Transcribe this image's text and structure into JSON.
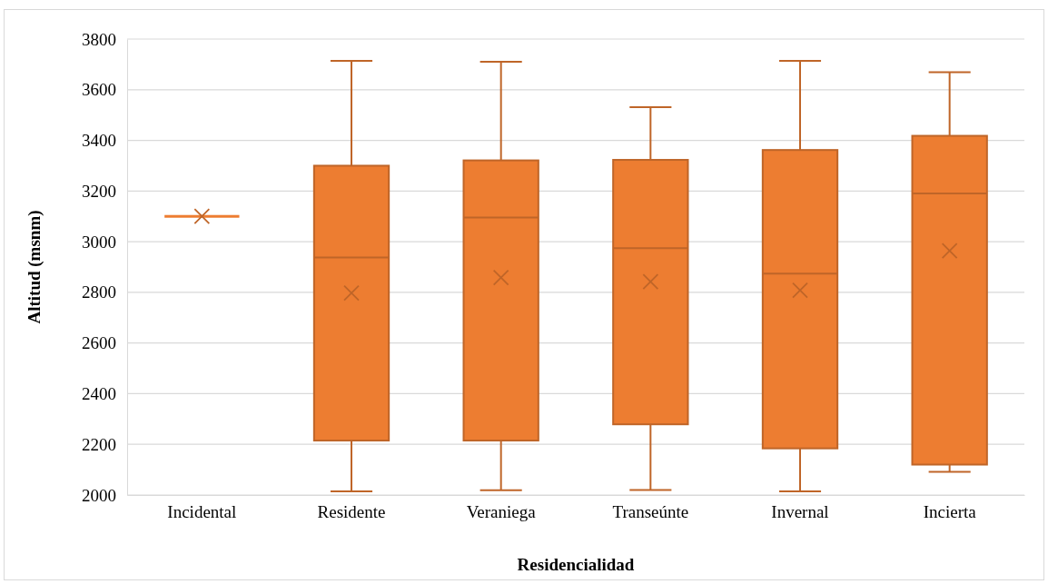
{
  "chart_data": {
    "type": "box",
    "xlabel": "Residencialidad",
    "ylabel": "Altitud (msnm)",
    "categories": [
      "Incidental",
      "Residente",
      "Veraniega",
      "Transeúnte",
      "Invernal",
      "Incierta"
    ],
    "boxes": [
      {
        "low": 3100,
        "q1": 3100,
        "median": 3100,
        "q3": 3100,
        "high": 3100,
        "mean": 3100
      },
      {
        "low": 2014,
        "q1": 2215,
        "median": 2938,
        "q3": 3300,
        "high": 3714,
        "mean": 2797
      },
      {
        "low": 2019,
        "q1": 2215,
        "median": 3095,
        "q3": 3321,
        "high": 3710,
        "mean": 2858
      },
      {
        "low": 2020,
        "q1": 2279,
        "median": 2974,
        "q3": 3323,
        "high": 3531,
        "mean": 2842
      },
      {
        "low": 2014,
        "q1": 2184,
        "median": 2874,
        "q3": 3362,
        "high": 3714,
        "mean": 2808
      },
      {
        "low": 2091,
        "q1": 2120,
        "median": 3190,
        "q3": 3418,
        "high": 3669,
        "mean": 2964
      }
    ],
    "color": "#ed7d31",
    "ylim": [
      2000,
      3800
    ],
    "yticks": [
      2000,
      2200,
      2400,
      2600,
      2800,
      3000,
      3200,
      3400,
      3600,
      3800
    ],
    "grid": "y"
  }
}
